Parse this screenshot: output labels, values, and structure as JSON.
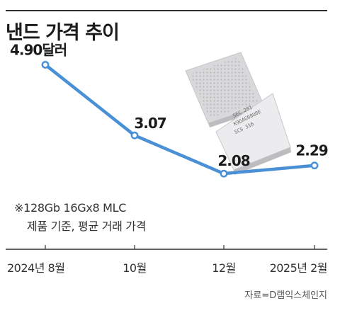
{
  "title": "낸드 가격 추이",
  "notes": [
    "※128Gb 16Gx8 MLC",
    "제품 기준, 평균 거래 가격"
  ],
  "source": "자료=D램익스체인지",
  "colors": {
    "line": "#4a90d6",
    "text": "#1b1b1b",
    "axis": "#333333",
    "chip": "#e9e9ea"
  },
  "chip_text": [
    "SEC 201",
    "K9GAG08U0E",
    "SCS 316"
  ],
  "chart_data": {
    "type": "line",
    "x": [
      "2024년 8월",
      "10월",
      "12월",
      "2025년 2월"
    ],
    "values": [
      4.9,
      3.07,
      2.08,
      2.29
    ],
    "value_labels": [
      "4.90달러",
      "3.07",
      "2.08",
      "2.29"
    ],
    "unit": "달러",
    "title": "낸드 가격 추이",
    "xlabel": "",
    "ylabel": "",
    "grid": false,
    "legend": "none"
  }
}
